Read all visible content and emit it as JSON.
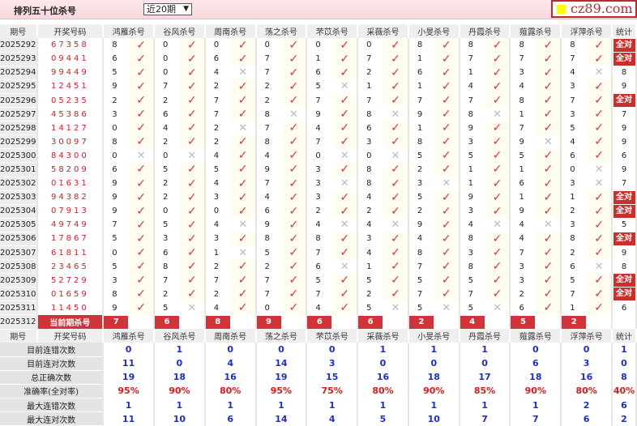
{
  "header": {
    "title": "排列五十位杀号",
    "range_select": "近20期",
    "logo_text": "cz89.com"
  },
  "columns": {
    "period": "期号",
    "draw": "开奖号码",
    "experts": [
      "鸿雁杀号",
      "谷风杀号",
      "周南杀号",
      "荡之杀号",
      "芣苡杀号",
      "采薇杀号",
      "小旻杀号",
      "丹霞杀号",
      "薤露杀号",
      "浮萍杀号"
    ],
    "stat": "统计"
  },
  "colors": {
    "check": "#e0303a",
    "cross": "#bbbbbb",
    "badge": "#c9302c",
    "stat_value": "#1d2fc4",
    "rate": "#e01818"
  },
  "all_right_label": "全对",
  "rows": [
    {
      "period": "2025292",
      "draw": "67358",
      "kills": [
        8,
        0,
        0,
        0,
        0,
        0,
        8,
        8,
        8,
        8
      ],
      "hits": [
        1,
        1,
        1,
        1,
        1,
        1,
        1,
        1,
        1,
        1
      ],
      "stat": "全对"
    },
    {
      "period": "2025293",
      "draw": "09441",
      "kills": [
        6,
        0,
        6,
        7,
        1,
        7,
        1,
        7,
        7,
        7
      ],
      "hits": [
        1,
        1,
        1,
        1,
        1,
        1,
        1,
        1,
        1,
        1
      ],
      "stat": "全对"
    },
    {
      "period": "2025294",
      "draw": "99449",
      "kills": [
        5,
        0,
        4,
        7,
        6,
        2,
        6,
        1,
        3,
        4
      ],
      "hits": [
        1,
        1,
        0,
        1,
        1,
        1,
        1,
        1,
        1,
        0
      ],
      "stat": "8"
    },
    {
      "period": "2025295",
      "draw": "12451",
      "kills": [
        9,
        7,
        2,
        2,
        5,
        1,
        1,
        4,
        4,
        3
      ],
      "hits": [
        1,
        1,
        1,
        1,
        0,
        1,
        1,
        1,
        1,
        1
      ],
      "stat": "9"
    },
    {
      "period": "2025296",
      "draw": "05235",
      "kills": [
        2,
        2,
        7,
        2,
        7,
        7,
        7,
        7,
        8,
        7
      ],
      "hits": [
        1,
        1,
        1,
        1,
        1,
        1,
        1,
        1,
        1,
        1
      ],
      "stat": "全对"
    },
    {
      "period": "2025297",
      "draw": "45386",
      "kills": [
        3,
        6,
        7,
        8,
        9,
        8,
        9,
        8,
        1,
        3
      ],
      "hits": [
        1,
        1,
        1,
        0,
        1,
        0,
        1,
        0,
        1,
        1
      ],
      "stat": "7"
    },
    {
      "period": "2025298",
      "draw": "14127",
      "kills": [
        0,
        4,
        2,
        7,
        4,
        6,
        1,
        9,
        7,
        5
      ],
      "hits": [
        1,
        1,
        0,
        1,
        1,
        1,
        1,
        1,
        1,
        1
      ],
      "stat": "9"
    },
    {
      "period": "2025299",
      "draw": "30097",
      "kills": [
        8,
        2,
        2,
        8,
        7,
        3,
        8,
        3,
        9,
        4
      ],
      "hits": [
        1,
        1,
        1,
        1,
        1,
        1,
        1,
        1,
        0,
        1
      ],
      "stat": "9"
    },
    {
      "period": "2025300",
      "draw": "84300",
      "kills": [
        0,
        0,
        4,
        4,
        0,
        0,
        5,
        5,
        5,
        6
      ],
      "hits": [
        0,
        0,
        1,
        1,
        0,
        0,
        1,
        1,
        1,
        1
      ],
      "stat": "6"
    },
    {
      "period": "2025301",
      "draw": "58209",
      "kills": [
        6,
        5,
        5,
        9,
        3,
        8,
        2,
        1,
        1,
        0
      ],
      "hits": [
        1,
        1,
        1,
        1,
        1,
        1,
        1,
        1,
        1,
        0
      ],
      "stat": "9"
    },
    {
      "period": "2025302",
      "draw": "01631",
      "kills": [
        9,
        2,
        4,
        7,
        3,
        8,
        3,
        1,
        6,
        3
      ],
      "hits": [
        1,
        1,
        1,
        1,
        0,
        1,
        0,
        1,
        1,
        0
      ],
      "stat": "7"
    },
    {
      "period": "2025303",
      "draw": "94382",
      "kills": [
        9,
        2,
        3,
        4,
        3,
        4,
        5,
        9,
        1,
        1
      ],
      "hits": [
        1,
        1,
        1,
        1,
        1,
        1,
        1,
        1,
        1,
        1
      ],
      "stat": "全对"
    },
    {
      "period": "2025304",
      "draw": "07913",
      "kills": [
        9,
        0,
        0,
        6,
        2,
        2,
        2,
        3,
        9,
        2
      ],
      "hits": [
        1,
        1,
        1,
        1,
        1,
        1,
        1,
        1,
        1,
        1
      ],
      "stat": "全对"
    },
    {
      "period": "2025305",
      "draw": "49749",
      "kills": [
        7,
        5,
        4,
        9,
        4,
        4,
        9,
        4,
        4,
        3
      ],
      "hits": [
        1,
        1,
        0,
        1,
        0,
        0,
        1,
        0,
        0,
        1
      ],
      "stat": "5"
    },
    {
      "period": "2025306",
      "draw": "17867",
      "kills": [
        5,
        3,
        3,
        8,
        8,
        3,
        4,
        8,
        4,
        8
      ],
      "hits": [
        1,
        1,
        1,
        1,
        1,
        1,
        1,
        1,
        1,
        1
      ],
      "stat": "全对"
    },
    {
      "period": "2025307",
      "draw": "61811",
      "kills": [
        0,
        6,
        1,
        5,
        7,
        4,
        8,
        3,
        7,
        2
      ],
      "hits": [
        1,
        1,
        0,
        1,
        1,
        1,
        1,
        1,
        1,
        1
      ],
      "stat": "9"
    },
    {
      "period": "2025308",
      "draw": "23465",
      "kills": [
        5,
        8,
        2,
        2,
        6,
        1,
        7,
        8,
        3,
        6
      ],
      "hits": [
        1,
        1,
        1,
        1,
        0,
        1,
        1,
        1,
        1,
        0
      ],
      "stat": "8"
    },
    {
      "period": "2025309",
      "draw": "52729",
      "kills": [
        3,
        7,
        7,
        7,
        5,
        5,
        5,
        5,
        3,
        5
      ],
      "hits": [
        1,
        1,
        1,
        1,
        1,
        1,
        1,
        1,
        1,
        1
      ],
      "stat": "全对"
    },
    {
      "period": "2025310",
      "draw": "01659",
      "kills": [
        8,
        2,
        2,
        7,
        7,
        2,
        7,
        7,
        2,
        7
      ],
      "hits": [
        1,
        1,
        1,
        1,
        1,
        1,
        1,
        1,
        1,
        1
      ],
      "stat": "全对"
    },
    {
      "period": "2025311",
      "draw": "11450",
      "kills": [
        9,
        5,
        4,
        0,
        4,
        5,
        5,
        5,
        6,
        1
      ],
      "hits": [
        1,
        0,
        1,
        1,
        1,
        0,
        0,
        0,
        1,
        1
      ],
      "stat": "6"
    }
  ],
  "current": {
    "period": "2025312",
    "label": "当前期杀号",
    "kills": [
      7,
      6,
      8,
      9,
      6,
      6,
      2,
      4,
      5,
      2
    ]
  },
  "stats": [
    {
      "label": "目前连错次数",
      "values": [
        "0",
        "1",
        "0",
        "0",
        "0",
        "1",
        "1",
        "1",
        "0",
        "0",
        "1"
      ]
    },
    {
      "label": "目前连对次数",
      "values": [
        "11",
        "0",
        "4",
        "14",
        "3",
        "0",
        "0",
        "0",
        "6",
        "3",
        "0"
      ]
    },
    {
      "label": "总正确次数",
      "values": [
        "19",
        "18",
        "16",
        "19",
        "15",
        "16",
        "18",
        "17",
        "18",
        "16",
        "8"
      ]
    },
    {
      "label": "准确率(全对率)",
      "values": [
        "95%",
        "90%",
        "80%",
        "95%",
        "75%",
        "80%",
        "90%",
        "85%",
        "90%",
        "80%",
        "40%"
      ],
      "highlight": true
    },
    {
      "label": "最大连错次数",
      "values": [
        "1",
        "1",
        "1",
        "1",
        "1",
        "1",
        "1",
        "1",
        "1",
        "2",
        "6"
      ]
    },
    {
      "label": "最大连对次数",
      "values": [
        "11",
        "10",
        "6",
        "14",
        "4",
        "5",
        "10",
        "7",
        "7",
        "6",
        "2"
      ]
    }
  ]
}
